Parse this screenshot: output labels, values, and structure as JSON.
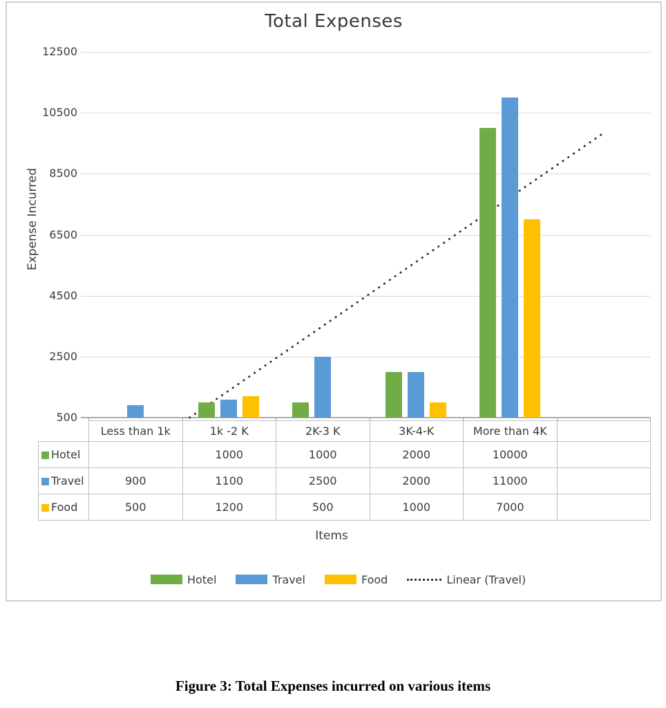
{
  "caption": "Figure 3: Total Expenses incurred on various items",
  "chart_data": {
    "type": "bar",
    "title": "Total Expenses",
    "xlabel": "Items",
    "ylabel": "Expense Incurred",
    "ylim": [
      500,
      12500
    ],
    "y_ticks": [
      500,
      2500,
      4500,
      6500,
      8500,
      10500,
      12500
    ],
    "grid": "horizontal",
    "legend_position": "bottom",
    "data_table_shown": true,
    "categories": [
      "Less than 1k",
      "1k -2 K",
      "2K-3 K",
      "3K-4-K",
      "More than 4K",
      ""
    ],
    "series": [
      {
        "name": "Hotel",
        "color": "#70AD47",
        "values": [
          null,
          1000,
          1000,
          2000,
          10000,
          null
        ]
      },
      {
        "name": "Travel",
        "color": "#5B9BD5",
        "values": [
          900,
          1100,
          2500,
          2000,
          11000,
          null
        ]
      },
      {
        "name": "Food",
        "color": "#FFC000",
        "values": [
          500,
          1200,
          500,
          1000,
          7000,
          null
        ]
      }
    ],
    "trendline": {
      "name": "Linear (Travel)",
      "color": "#2f2f2f",
      "x_start_col": 1.08,
      "value_start": 500,
      "x_end_col": 5.5,
      "value_end": 9830
    }
  }
}
